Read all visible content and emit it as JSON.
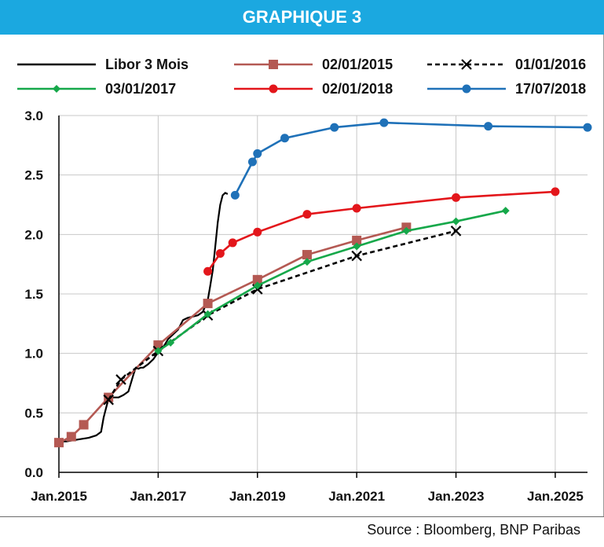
{
  "title": "GRAPHIQUE 3",
  "source": "Source : Bloomberg, BNP Paribas",
  "chart_data": {
    "type": "line",
    "title": "GRAPHIQUE 3",
    "xlabel": "",
    "ylabel": "",
    "ylim": [
      0,
      3
    ],
    "xlim": [
      2015.0,
      2025.65
    ],
    "y_ticks": [
      "0.0",
      "0.5",
      "1.0",
      "1.5",
      "2.0",
      "2.5",
      "3.0"
    ],
    "x_ticks": [
      {
        "label": "Jan.2015",
        "value": 2015
      },
      {
        "label": "Jan.2017",
        "value": 2017
      },
      {
        "label": "Jan.2019",
        "value": 2019
      },
      {
        "label": "Jan.2021",
        "value": 2021
      },
      {
        "label": "Jan.2023",
        "value": 2023
      },
      {
        "label": "Jan.2025",
        "value": 2025
      }
    ],
    "grid": "horizontal and vertical",
    "legend_position": "top",
    "series": [
      {
        "name": "Libor 3 Mois",
        "color": "#000000",
        "marker": "none",
        "dash": "solid",
        "x": [
          2015.0,
          2015.15,
          2015.3,
          2015.45,
          2015.6,
          2015.75,
          2015.85,
          2015.9,
          2015.95,
          2016.0,
          2016.1,
          2016.2,
          2016.3,
          2016.4,
          2016.5,
          2016.55,
          2016.6,
          2016.65,
          2016.7,
          2016.8,
          2016.9,
          2017.0,
          2017.1,
          2017.2,
          2017.3,
          2017.4,
          2017.5,
          2017.6,
          2017.7,
          2017.8,
          2017.9,
          2018.0,
          2018.05,
          2018.1,
          2018.15,
          2018.2,
          2018.25,
          2018.3,
          2018.35,
          2018.4
        ],
        "y": [
          0.26,
          0.26,
          0.27,
          0.28,
          0.29,
          0.31,
          0.34,
          0.46,
          0.54,
          0.62,
          0.63,
          0.63,
          0.65,
          0.68,
          0.82,
          0.88,
          0.87,
          0.88,
          0.88,
          0.91,
          0.95,
          1.01,
          1.05,
          1.12,
          1.16,
          1.2,
          1.28,
          1.3,
          1.31,
          1.32,
          1.35,
          1.45,
          1.57,
          1.7,
          1.9,
          2.1,
          2.25,
          2.33,
          2.35,
          2.34
        ]
      },
      {
        "name": "02/01/2015",
        "color": "#b45953",
        "marker": "square",
        "dash": "solid",
        "x": [
          2015.0,
          2015.25,
          2015.5,
          2016.0,
          2017.0,
          2018.0,
          2019.0,
          2020.0,
          2021.0,
          2022.0
        ],
        "y": [
          0.25,
          0.3,
          0.4,
          0.63,
          1.07,
          1.42,
          1.62,
          1.83,
          1.95,
          2.06
        ]
      },
      {
        "name": "01/01/2016",
        "color": "#000000",
        "marker": "x",
        "dash": "dashed",
        "x": [
          2016.0,
          2016.25,
          2017.0,
          2018.0,
          2019.0,
          2021.0,
          2023.0
        ],
        "y": [
          0.61,
          0.78,
          1.02,
          1.32,
          1.54,
          1.82,
          2.03
        ]
      },
      {
        "name": "03/01/2017",
        "color": "#16a84a",
        "marker": "diamond",
        "dash": "solid",
        "x": [
          2017.0,
          2017.25,
          2018.0,
          2019.0,
          2020.0,
          2021.0,
          2022.0,
          2023.0,
          2024.0
        ],
        "y": [
          1.02,
          1.09,
          1.33,
          1.57,
          1.77,
          1.9,
          2.03,
          2.11,
          2.2
        ]
      },
      {
        "name": "02/01/2018",
        "color": "#e3161b",
        "marker": "circle",
        "dash": "solid",
        "x": [
          2018.0,
          2018.25,
          2018.5,
          2019.0,
          2020.0,
          2021.0,
          2023.0,
          2025.0
        ],
        "y": [
          1.69,
          1.84,
          1.93,
          2.02,
          2.17,
          2.22,
          2.31,
          2.36
        ]
      },
      {
        "name": "17/07/2018",
        "color": "#1f71b8",
        "marker": "circle",
        "dash": "solid",
        "x": [
          2018.55,
          2018.9,
          2019.0,
          2019.55,
          2020.55,
          2021.55,
          2023.65,
          2025.65
        ],
        "y": [
          2.33,
          2.61,
          2.68,
          2.81,
          2.9,
          2.94,
          2.91,
          2.9
        ]
      }
    ]
  }
}
